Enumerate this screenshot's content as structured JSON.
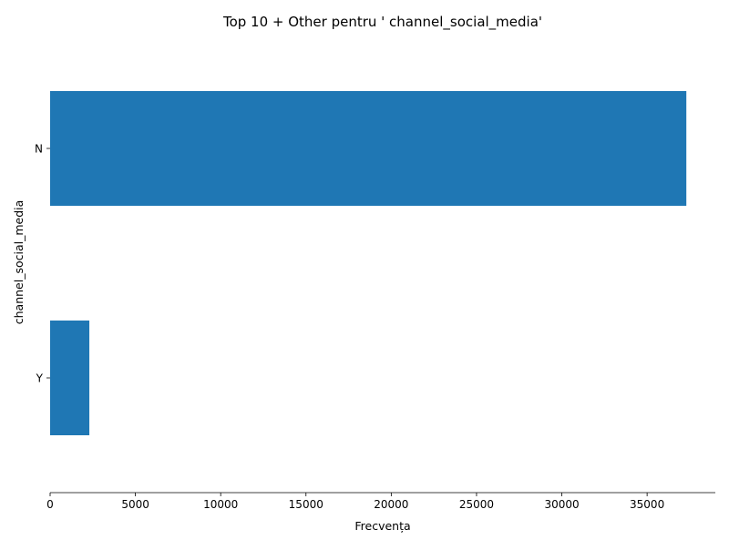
{
  "chart_data": {
    "type": "bar",
    "orientation": "horizontal",
    "title": "Top 10 + Other pentru ' channel_social_media'",
    "xlabel": "Frecvența",
    "ylabel": "channel_social_media",
    "categories": [
      "N",
      "Y"
    ],
    "values": [
      37300,
      2300
    ],
    "xlim": [
      0,
      39000
    ],
    "xticks": [
      0,
      5000,
      10000,
      15000,
      20000,
      25000,
      30000,
      35000
    ],
    "grid": false,
    "legend": "none",
    "bar_color": "#1f77b4"
  }
}
